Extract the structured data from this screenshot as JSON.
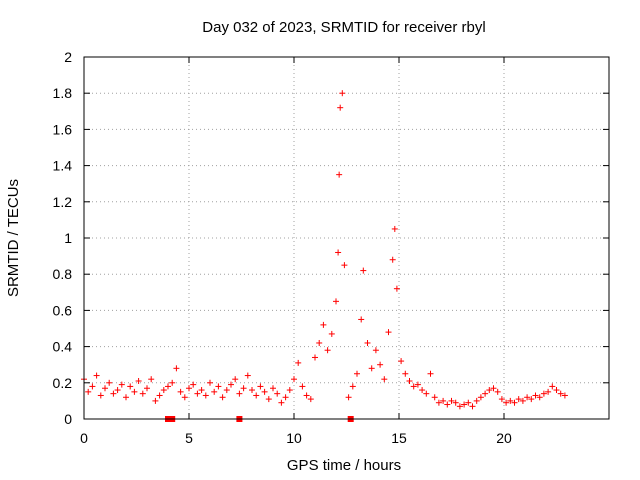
{
  "chart_data": {
    "type": "scatter",
    "title": "Day 032 of 2023, SRMTID for receiver rbyl",
    "xlabel": "GPS time / hours",
    "ylabel": "SRMTID / TECUs",
    "xlim": [
      0,
      25
    ],
    "ylim": [
      0,
      2
    ],
    "xticks": [
      0,
      5,
      10,
      15,
      20
    ],
    "xtick_labels": [
      "0",
      "5",
      "10",
      "15",
      "20"
    ],
    "yticks": [
      0,
      0.2,
      0.4,
      0.6,
      0.8,
      1.0,
      1.2,
      1.4,
      1.6,
      1.8,
      2.0
    ],
    "ytick_labels": [
      "0",
      "0.2",
      "0.4",
      "0.6",
      "0.8",
      "1",
      "1.2",
      "1.4",
      "1.6",
      "1.8",
      "2"
    ],
    "grid": true,
    "marker": "+",
    "color": "#ff0000",
    "data_gaps_x": [
      4.0,
      4.2,
      7.4,
      12.7
    ],
    "series": [
      {
        "name": "SRMTID",
        "x": [
          0.0,
          0.2,
          0.4,
          0.6,
          0.8,
          1.0,
          1.2,
          1.4,
          1.6,
          1.8,
          2.0,
          2.2,
          2.4,
          2.6,
          2.8,
          3.0,
          3.2,
          3.4,
          3.6,
          3.8,
          4.0,
          4.2,
          4.4,
          4.6,
          4.8,
          5.0,
          5.2,
          5.4,
          5.6,
          5.8,
          6.0,
          6.2,
          6.4,
          6.6,
          6.8,
          7.0,
          7.2,
          7.4,
          7.6,
          7.8,
          8.0,
          8.2,
          8.4,
          8.6,
          8.8,
          9.0,
          9.2,
          9.4,
          9.6,
          9.8,
          10.0,
          10.2,
          10.4,
          10.6,
          10.8,
          11.0,
          11.2,
          11.4,
          11.6,
          11.8,
          12.0,
          12.1,
          12.15,
          12.2,
          12.3,
          12.4,
          12.6,
          12.8,
          13.0,
          13.2,
          13.3,
          13.5,
          13.7,
          13.9,
          14.1,
          14.3,
          14.5,
          14.7,
          14.8,
          14.9,
          15.1,
          15.3,
          15.5,
          15.7,
          15.9,
          16.1,
          16.3,
          16.5,
          16.7,
          16.9,
          17.1,
          17.3,
          17.5,
          17.7,
          17.9,
          18.1,
          18.3,
          18.5,
          18.7,
          18.9,
          19.1,
          19.3,
          19.5,
          19.7,
          19.9,
          20.1,
          20.3,
          20.5,
          20.7,
          20.9,
          21.1,
          21.3,
          21.5,
          21.7,
          21.9,
          22.1,
          22.3,
          22.5,
          22.7,
          22.9
        ],
        "y": [
          0.22,
          0.15,
          0.18,
          0.24,
          0.13,
          0.17,
          0.2,
          0.14,
          0.16,
          0.19,
          0.12,
          0.18,
          0.15,
          0.21,
          0.14,
          0.17,
          0.22,
          0.1,
          0.13,
          0.16,
          0.18,
          0.2,
          0.28,
          0.15,
          0.12,
          0.17,
          0.19,
          0.14,
          0.16,
          0.13,
          0.2,
          0.15,
          0.18,
          0.12,
          0.16,
          0.19,
          0.22,
          0.14,
          0.17,
          0.24,
          0.16,
          0.13,
          0.18,
          0.15,
          0.11,
          0.17,
          0.14,
          0.09,
          0.12,
          0.16,
          0.22,
          0.31,
          0.18,
          0.13,
          0.11,
          0.34,
          0.42,
          0.52,
          0.38,
          0.47,
          0.65,
          0.92,
          1.35,
          1.72,
          1.8,
          0.85,
          0.12,
          0.18,
          0.25,
          0.55,
          0.82,
          0.42,
          0.28,
          0.38,
          0.3,
          0.22,
          0.48,
          0.88,
          1.05,
          0.72,
          0.32,
          0.25,
          0.21,
          0.18,
          0.19,
          0.16,
          0.14,
          0.25,
          0.12,
          0.09,
          0.1,
          0.08,
          0.1,
          0.09,
          0.07,
          0.08,
          0.09,
          0.07,
          0.1,
          0.12,
          0.14,
          0.16,
          0.17,
          0.15,
          0.11,
          0.09,
          0.1,
          0.09,
          0.11,
          0.1,
          0.12,
          0.11,
          0.13,
          0.12,
          0.14,
          0.15,
          0.18,
          0.16,
          0.14,
          0.13
        ]
      }
    ]
  }
}
